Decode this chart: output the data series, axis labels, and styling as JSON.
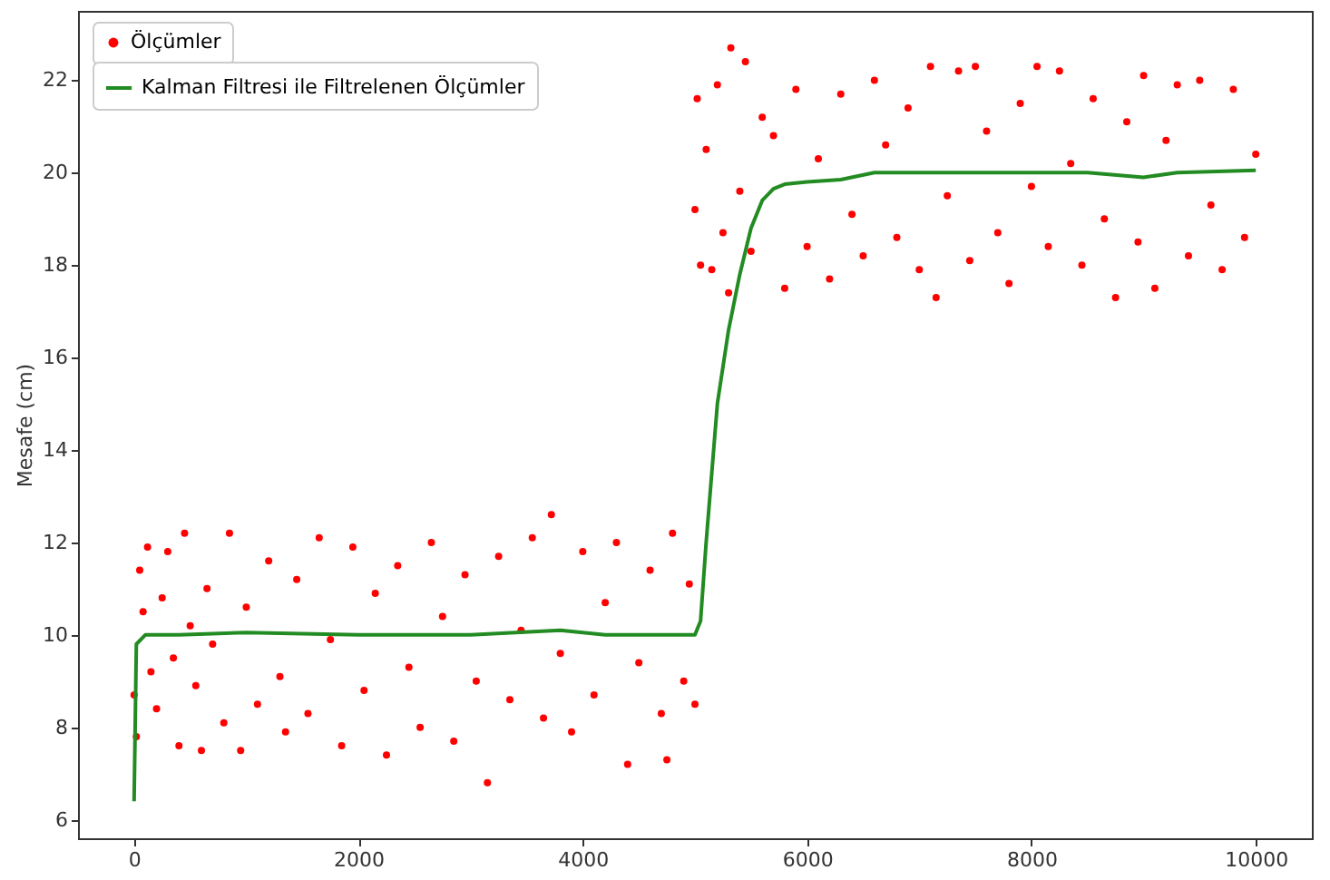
{
  "chart_data": {
    "type": "scatter",
    "ylabel": "Mesafe (cm)",
    "xlim": [
      -500,
      10500
    ],
    "ylim": [
      5.6,
      23.5
    ],
    "xticks": [
      0,
      2000,
      4000,
      6000,
      8000,
      10000
    ],
    "yticks": [
      6,
      8,
      10,
      12,
      14,
      16,
      18,
      20,
      22
    ],
    "grid": false,
    "legend": "top left",
    "series": [
      {
        "name": "Ölçümler",
        "color": "#ff0000",
        "marker": "circle",
        "x": [
          0,
          20,
          50,
          80,
          120,
          150,
          200,
          250,
          300,
          350,
          400,
          450,
          500,
          550,
          600,
          650,
          700,
          800,
          850,
          950,
          1000,
          1100,
          1200,
          1300,
          1350,
          1450,
          1550,
          1650,
          1750,
          1850,
          1950,
          2050,
          2150,
          2250,
          2350,
          2450,
          2550,
          2650,
          2750,
          2850,
          2950,
          3050,
          3150,
          3250,
          3350,
          3450,
          3550,
          3650,
          3720,
          3800,
          3900,
          4000,
          4100,
          4200,
          4300,
          4400,
          4500,
          4600,
          4700,
          4750,
          4800,
          4900,
          4950,
          5000,
          5000,
          5020,
          5050,
          5100,
          5150,
          5200,
          5250,
          5300,
          5320,
          5400,
          5450,
          5500,
          5600,
          5700,
          5800,
          5900,
          6000,
          6100,
          6200,
          6300,
          6400,
          6500,
          6600,
          6700,
          6800,
          6900,
          7000,
          7100,
          7150,
          7250,
          7350,
          7450,
          7500,
          7600,
          7700,
          7800,
          7900,
          8000,
          8050,
          8150,
          8250,
          8350,
          8450,
          8550,
          8650,
          8750,
          8850,
          8950,
          9000,
          9100,
          9200,
          9300,
          9400,
          9500,
          9600,
          9700,
          9800,
          9900,
          10000
        ],
        "values": [
          8.7,
          7.8,
          11.4,
          10.5,
          11.9,
          9.2,
          8.4,
          10.8,
          11.8,
          9.5,
          7.6,
          12.2,
          10.2,
          8.9,
          7.5,
          11.0,
          9.8,
          8.1,
          12.2,
          7.5,
          10.6,
          8.5,
          11.6,
          9.1,
          7.9,
          11.2,
          8.3,
          12.1,
          9.9,
          7.6,
          11.9,
          8.8,
          10.9,
          7.4,
          11.5,
          9.3,
          8.0,
          12.0,
          10.4,
          7.7,
          11.3,
          9.0,
          6.8,
          11.7,
          8.6,
          10.1,
          12.1,
          8.2,
          12.6,
          9.6,
          7.9,
          11.8,
          8.7,
          10.7,
          12.0,
          7.2,
          9.4,
          11.4,
          8.3,
          7.3,
          12.2,
          9.0,
          11.1,
          8.5,
          19.2,
          21.6,
          18.0,
          20.5,
          17.9,
          21.9,
          18.7,
          17.4,
          22.7,
          19.6,
          22.4,
          18.3,
          21.2,
          20.8,
          17.5,
          21.8,
          18.4,
          20.3,
          17.7,
          21.7,
          19.1,
          18.2,
          22.0,
          20.6,
          18.6,
          21.4,
          17.9,
          22.3,
          17.3,
          19.5,
          22.2,
          18.1,
          22.3,
          20.9,
          18.7,
          17.6,
          21.5,
          19.7,
          22.3,
          18.4,
          22.2,
          20.2,
          18.0,
          21.6,
          19.0,
          17.3,
          21.1,
          18.5,
          22.1,
          17.5,
          20.7,
          21.9,
          18.2,
          22.0,
          19.3,
          17.9,
          21.8,
          18.6,
          20.4
        ]
      },
      {
        "name": "Kalman Filtresi ile Filtrelenen Ölçümler",
        "type": "line",
        "color": "#228b22",
        "line_style": "solid",
        "x": [
          0,
          20,
          100,
          400,
          1000,
          2000,
          3000,
          3800,
          4200,
          5000,
          5050,
          5100,
          5150,
          5200,
          5300,
          5400,
          5500,
          5600,
          5700,
          5800,
          6000,
          6300,
          6600,
          7000,
          8000,
          8500,
          9000,
          9300,
          10000
        ],
        "values": [
          6.4,
          9.8,
          10.0,
          10.0,
          10.05,
          10.0,
          10.0,
          10.1,
          10.0,
          10.0,
          10.3,
          12.0,
          13.5,
          15.0,
          16.6,
          17.8,
          18.8,
          19.4,
          19.65,
          19.75,
          19.8,
          19.85,
          20.0,
          20.0,
          20.0,
          20.0,
          19.9,
          20.0,
          20.05
        ]
      }
    ]
  }
}
